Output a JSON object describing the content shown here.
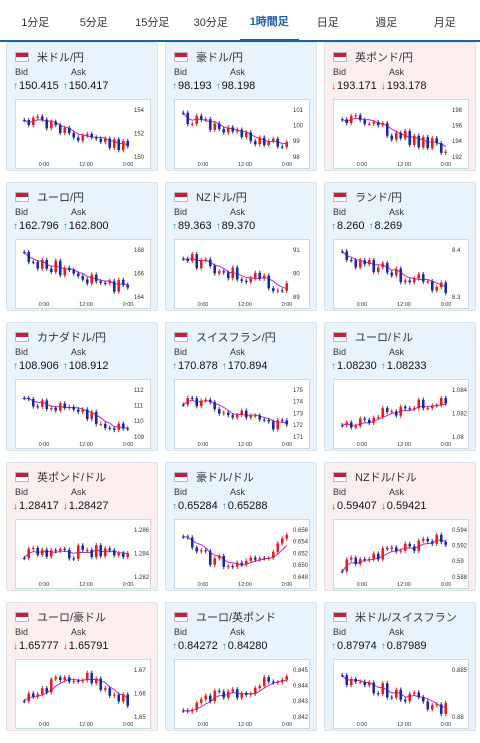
{
  "tabs": [
    "1分足",
    "5分足",
    "15分足",
    "30分足",
    "1時間足",
    "日足",
    "週足",
    "月足"
  ],
  "active_tab": "1時間足",
  "bid_label": "Bid",
  "ask_label": "Ask",
  "x_labels": [
    "0:00",
    "12:00",
    "0:00"
  ],
  "pairs": [
    {
      "name": "米ドル/円",
      "bg": "blue",
      "dir": "up",
      "bid": "150.415",
      "ask": "150.417",
      "y_ticks": [
        "154",
        "152",
        "150"
      ],
      "trend": "down"
    },
    {
      "name": "豪ドル/円",
      "bg": "blue",
      "dir": "up",
      "bid": "98.193",
      "ask": "98.198",
      "y_ticks": [
        "101",
        "100",
        "99",
        "98"
      ],
      "trend": "down"
    },
    {
      "name": "英ポンド/円",
      "bg": "pink",
      "dir": "down",
      "bid": "193.171",
      "ask": "193.178",
      "y_ticks": [
        "198",
        "196",
        "194",
        "192"
      ],
      "trend": "down"
    },
    {
      "name": "ユーロ/円",
      "bg": "blue",
      "dir": "up",
      "bid": "162.796",
      "ask": "162.800",
      "y_ticks": [
        "168",
        "166",
        "164"
      ],
      "trend": "down"
    },
    {
      "name": "NZドル/円",
      "bg": "blue",
      "dir": "up",
      "bid": "89.363",
      "ask": "89.370",
      "y_ticks": [
        "91",
        "90",
        "89"
      ],
      "trend": "down"
    },
    {
      "name": "ランド/円",
      "bg": "blue",
      "dir": "up",
      "bid": "8.260",
      "ask": "8.269",
      "y_ticks": [
        "8.4",
        "8.3"
      ],
      "trend": "down"
    },
    {
      "name": "カナダドル/円",
      "bg": "blue",
      "dir": "up",
      "bid": "108.906",
      "ask": "108.912",
      "y_ticks": [
        "112",
        "111",
        "110",
        "109"
      ],
      "trend": "down"
    },
    {
      "name": "スイスフラン/円",
      "bg": "blue",
      "dir": "up",
      "bid": "170.878",
      "ask": "170.894",
      "y_ticks": [
        "175",
        "174",
        "173",
        "172",
        "171"
      ],
      "trend": "down"
    },
    {
      "name": "ユーロ/ドル",
      "bg": "blue",
      "dir": "up",
      "bid": "1.08230",
      "ask": "1.08233",
      "y_ticks": [
        "1.084",
        "1.082",
        "1.08"
      ],
      "trend": "up"
    },
    {
      "name": "英ポンド/ドル",
      "bg": "pink",
      "dir": "down",
      "bid": "1.28417",
      "ask": "1.28427",
      "y_ticks": [
        "1.286",
        "1.284",
        "1.282"
      ],
      "trend": "flat"
    },
    {
      "name": "豪ドル/ドル",
      "bg": "blue",
      "dir": "up",
      "bid": "0.65284",
      "ask": "0.65288",
      "y_ticks": [
        "0.656",
        "0.654",
        "0.652",
        "0.650",
        "0.648"
      ],
      "trend": "dip"
    },
    {
      "name": "NZドル/ドル",
      "bg": "pink",
      "dir": "down",
      "bid": "0.59407",
      "ask": "0.59421",
      "y_ticks": [
        "0.594",
        "0.592",
        "0.59",
        "0.588"
      ],
      "trend": "up"
    },
    {
      "name": "ユーロ/豪ドル",
      "bg": "pink",
      "dir": "down",
      "bid": "1.65777",
      "ask": "1.65791",
      "y_ticks": [
        "1.67",
        "1.66",
        "1.65"
      ],
      "trend": "hump"
    },
    {
      "name": "ユーロ/英ポンド",
      "bg": "blue",
      "dir": "up",
      "bid": "0.84272",
      "ask": "0.84280",
      "y_ticks": [
        "0.845",
        "0.844",
        "0.843",
        "0.842"
      ],
      "trend": "up"
    },
    {
      "name": "米ドル/スイスフラン",
      "bg": "blue",
      "dir": "up",
      "bid": "0.87974",
      "ask": "0.87989",
      "y_ticks": [
        "0.885",
        "0.88"
      ],
      "trend": "down"
    }
  ]
}
